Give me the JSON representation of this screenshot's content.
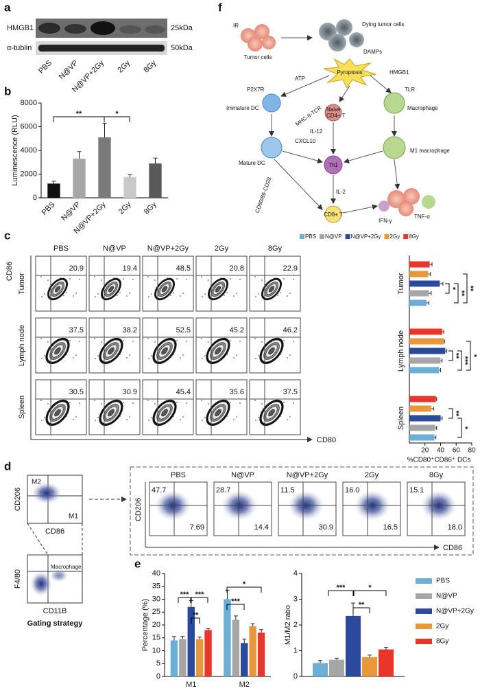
{
  "panel_labels": [
    "a",
    "b",
    "c",
    "d",
    "e",
    "f"
  ],
  "western_blot": {
    "bands": [
      "HMGB1",
      "α-tublin"
    ],
    "sizes": [
      "25kDa",
      "50kDa"
    ],
    "lanes": [
      "PBS",
      "N@VP",
      "N@VP+2Gy",
      "2Gy",
      "8Gy"
    ]
  },
  "flow_c": {
    "columns": [
      "PBS",
      "N@VP",
      "N@VP+2Gy",
      "2Gy",
      "8Gy"
    ],
    "rows": [
      "Tumor",
      "Lymph node",
      "Spleen"
    ],
    "y_axis": "CD86",
    "x_axis": "CD80",
    "values": [
      [
        "20.9",
        "19.4",
        "48.5",
        "20.8",
        "22.9"
      ],
      [
        "37.5",
        "38.2",
        "52.5",
        "45.2",
        "46.2"
      ],
      [
        "30.5",
        "30.9",
        "45.4",
        "35.6",
        "37.5"
      ]
    ]
  },
  "flow_d": {
    "gating": {
      "y_axis": "CD206",
      "x_axis": "CD86",
      "upper_left": "M2",
      "lower_right": "M1",
      "y_axis_2": "F4/80",
      "x_axis_2": "CD11B",
      "gate": "Macrophage",
      "caption": "Gating strategy"
    },
    "columns": [
      "PBS",
      "N@VP",
      "N@VP+2Gy",
      "2Gy",
      "8Gy"
    ],
    "y_axis": "CD206",
    "x_axis": "CD86",
    "upper": [
      "47.7",
      "28.7",
      "11.5",
      "16.0",
      "15.1"
    ],
    "lower": [
      "7.69",
      "14.4",
      "30.9",
      "16.5",
      "18.0"
    ]
  },
  "diagram_f": {
    "ir": "IR",
    "tumor_cells": "Tumor cells",
    "dying": "Dying tumor cells",
    "damps": "DAMPs",
    "pyroptosis": "Pyroptosis",
    "atp": "ATP",
    "hmgb1": "HMGB1",
    "p2x7r": "P2X7R",
    "tlr": "TLR",
    "immature_dc": "Immature DC",
    "naive": "Naive",
    "cd4": "CD4+ T",
    "macrophage": "Macrophage",
    "mhc": "MHC-II-TCR",
    "il12": "IL-12",
    "cxcl10": "CXCL10",
    "mature_dc": "Mature DC",
    "m1": "M1 macrophage",
    "th1": "Th1",
    "il2": "IL-2",
    "cd80": "CD80/86-CD28",
    "cd8": "CD8+ T",
    "tnf": "TNF-α",
    "ifn": "IFN-γ"
  },
  "chart_data": [
    {
      "type": "bar",
      "ylabel": "Luminescence (RLU)",
      "categories": [
        "PBS",
        "N@VP",
        "N@VP+2Gy",
        "2Gy",
        "8Gy"
      ],
      "values": [
        1200,
        3300,
        5100,
        1750,
        2900
      ],
      "errors": [
        200,
        600,
        1200,
        200,
        450
      ],
      "colors": [
        "#111111",
        "#a6a6a6",
        "#7a7a7a",
        "#c9c9c9",
        "#5a5a5a"
      ],
      "ylim": [
        0,
        8000
      ],
      "yticks": [
        0,
        2000,
        4000,
        6000,
        8000
      ],
      "annotations": [
        "**",
        "*"
      ]
    },
    {
      "type": "barh",
      "xlabel": "%CD80⁺CD86⁺ DCs",
      "categories": [
        "Tumor",
        "Lymph node",
        "Spleen"
      ],
      "series": [
        {
          "name": "PBS",
          "color": "#6baed6",
          "values": [
            22,
            38,
            32
          ],
          "errors": [
            3,
            2,
            2
          ]
        },
        {
          "name": "N@VP",
          "color": "#a6a6a6",
          "values": [
            25,
            40,
            33
          ],
          "errors": [
            3,
            2,
            2
          ]
        },
        {
          "name": "N@VP+2Gy",
          "color": "#2b4a9c",
          "values": [
            39,
            46,
            40
          ],
          "errors": [
            4,
            2,
            2
          ]
        },
        {
          "name": "2Gy",
          "color": "#e8973a",
          "values": [
            24,
            44,
            28
          ],
          "errors": [
            3,
            1,
            3
          ]
        },
        {
          "name": "8Gy",
          "color": "#e8362a",
          "values": [
            26,
            42,
            34
          ],
          "errors": [
            3,
            2,
            1
          ]
        }
      ],
      "xlim": [
        0,
        80
      ],
      "xticks": [
        20,
        40,
        60,
        80
      ],
      "annotations": [
        "*",
        "**",
        "**",
        "**",
        "***",
        "*",
        "**",
        "*"
      ]
    },
    {
      "type": "bar",
      "ylabel": "Percentage (%)",
      "categories": [
        "M1",
        "M2"
      ],
      "series": [
        {
          "name": "PBS",
          "color": "#6baed6",
          "values": [
            14,
            30
          ],
          "errors": [
            1.5,
            3.5
          ]
        },
        {
          "name": "N@VP",
          "color": "#a6a6a6",
          "values": [
            14.5,
            22
          ],
          "errors": [
            1,
            1.5
          ]
        },
        {
          "name": "N@VP+2Gy",
          "color": "#2b4a9c",
          "values": [
            27,
            13
          ],
          "errors": [
            2.5,
            1.5
          ]
        },
        {
          "name": "2Gy",
          "color": "#e8973a",
          "values": [
            14.5,
            19.5
          ],
          "errors": [
            0.8,
            1
          ]
        },
        {
          "name": "8Gy",
          "color": "#e8362a",
          "values": [
            18,
            17
          ],
          "errors": [
            0.5,
            1.2
          ]
        }
      ],
      "ylim": [
        0,
        40
      ],
      "yticks": [
        0,
        5,
        10,
        15,
        20,
        25,
        30,
        35,
        40
      ],
      "annotations": [
        "***",
        "***",
        "**",
        "*",
        "***"
      ]
    },
    {
      "type": "bar",
      "ylabel": "M1/M2 ratio",
      "categories": [
        null
      ],
      "series": [
        {
          "color": "#6baed6",
          "values": [
            0.52
          ],
          "errors": [
            0.1
          ]
        },
        {
          "color": "#a6a6a6",
          "values": [
            0.65
          ],
          "errors": [
            0.06
          ]
        },
        {
          "color": "#2b4a9c",
          "values": [
            2.35
          ],
          "errors": [
            0.5
          ]
        },
        {
          "color": "#e8973a",
          "values": [
            0.75
          ],
          "errors": [
            0.08
          ]
        },
        {
          "color": "#e8362a",
          "values": [
            1.05
          ],
          "errors": [
            0.08
          ]
        }
      ],
      "ylim": [
        0,
        4
      ],
      "yticks": [
        0,
        1,
        2,
        3,
        4
      ],
      "annotations": [
        "***",
        "**",
        "*"
      ]
    }
  ]
}
